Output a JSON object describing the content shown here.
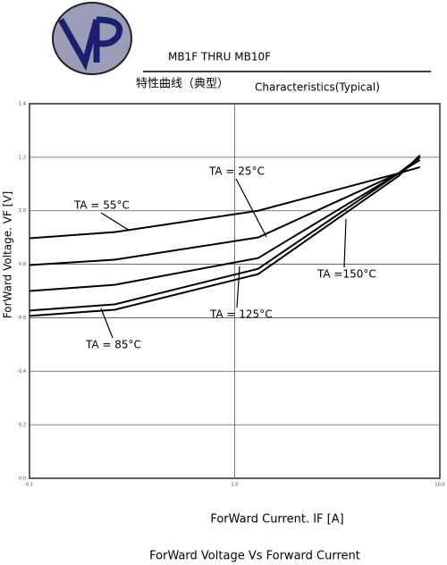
{
  "header": {
    "part": "MB1F THRU MB10F",
    "title_cn": "特性曲线（典型）",
    "title_en": "Characteristics(Typical)"
  },
  "chart_data": {
    "type": "line",
    "title": "ForWard Voltage Vs Forward Current",
    "x_label": "ForWard Current. IF [A]",
    "y_label": "ForWard Voltage. VF [V]",
    "x": [
      0.1,
      0.26,
      1.3,
      6.3,
      8.0
    ],
    "series": [
      {
        "name": "TA = 55°C",
        "color": "#000000",
        "values": [
          0.897,
          0.92,
          1.0,
          1.14,
          1.163
        ]
      },
      {
        "name": "TA = 25°C",
        "color": "#000000",
        "values": [
          0.797,
          0.817,
          0.9,
          1.14,
          1.2
        ]
      },
      {
        "name": "TA = 85°C",
        "color": "#000000",
        "values": [
          0.7,
          0.723,
          0.823,
          1.14,
          1.19
        ]
      },
      {
        "name": "TA = 125°C",
        "color": "#000000",
        "values": [
          0.627,
          0.65,
          0.783,
          1.14,
          1.2
        ]
      },
      {
        "name": "TA =150°C",
        "color": "#000000",
        "values": [
          0.607,
          0.63,
          0.763,
          1.13,
          1.207
        ]
      }
    ],
    "xlim": [
      0.1,
      10
    ],
    "xticks": [
      0.1,
      {
        "value": 1,
        "label": "1.0"
      },
      {
        "value": 10,
        "label": "10.0"
      }
    ],
    "xscale": "log",
    "ylim": [
      0,
      1.4
    ],
    "yticks": [
      {
        "value": 0,
        "label": "0.0"
      },
      0.2,
      0.4,
      0.6,
      0.8,
      {
        "value": 1,
        "label": "1.0"
      },
      1.2,
      1.4
    ],
    "grid": true
  }
}
